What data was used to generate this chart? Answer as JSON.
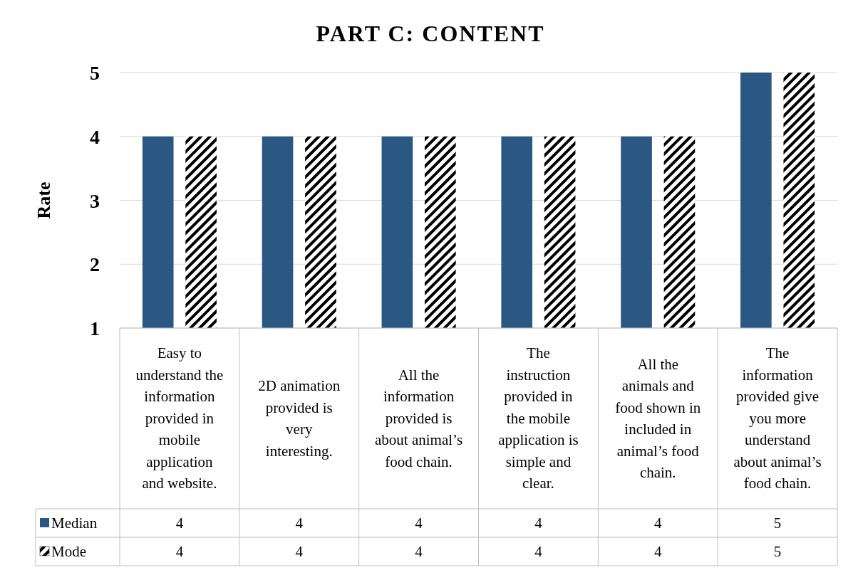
{
  "chart_data": {
    "type": "bar",
    "title": "PART C: CONTENT",
    "ylabel": "Rate",
    "categories": [
      "Easy to understand the information provided in mobile application and website.",
      "2D animation provided is very interesting.",
      "All the information provided is about animal’s food chain.",
      "The instruction provided in the mobile application is simple and clear.",
      "All the animals and food shown in included in animal’s food chain.",
      "The information provided give you more understand about animal’s food chain."
    ],
    "series": [
      {
        "name": "Median",
        "color": "#2b5882",
        "values": [
          4,
          4,
          4,
          4,
          4,
          5
        ]
      },
      {
        "name": "Mode",
        "color": "#000000",
        "values": [
          4,
          4,
          4,
          4,
          4,
          5
        ]
      }
    ],
    "ylim": [
      1,
      5
    ],
    "yticks": [
      1,
      2,
      3,
      4,
      5
    ],
    "grid": "y",
    "data_labels": true,
    "legend": "bottom left"
  }
}
